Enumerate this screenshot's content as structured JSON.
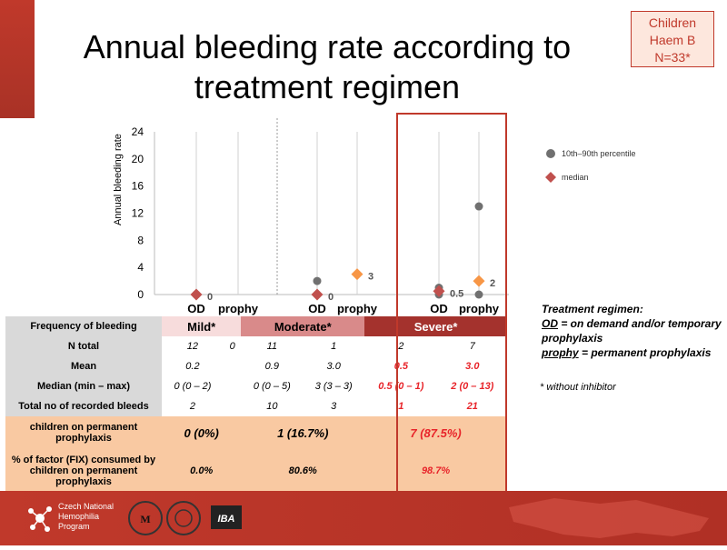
{
  "title": "Annual bleeding rate according to treatment regimen",
  "badge": {
    "line1": "Children",
    "line2": "Haem B",
    "line3": "N=33*"
  },
  "legend": {
    "percentile": "10th–90th percentile",
    "median": "median"
  },
  "colors": {
    "accent_red": "#c0392b",
    "grey_marker": "#707070",
    "median_red": "#c0504d",
    "median_orange": "#f79646"
  },
  "chart_data": {
    "type": "scatter",
    "title": "",
    "ylabel": "Annual bleeding rate",
    "ylim": [
      0,
      24
    ],
    "yticks": [
      "0",
      "4",
      "8",
      "12",
      "16",
      "20",
      "24"
    ],
    "categories": [
      "OD",
      "prophy",
      "OD",
      "prophy",
      "OD",
      "prophy"
    ],
    "groups": [
      "Mild*",
      "Moderate*",
      "Severe*"
    ],
    "series": [
      {
        "name": "10th–90th percentile",
        "points": [
          {
            "index": 0,
            "values": [
              0,
              0
            ]
          },
          {
            "index": 2,
            "values": [
              0,
              2
            ]
          },
          {
            "index": 4,
            "values": [
              0,
              1
            ]
          },
          {
            "index": 5,
            "values": [
              0,
              13
            ]
          }
        ]
      },
      {
        "name": "median",
        "points": [
          {
            "index": 0,
            "value": 0,
            "label": "0",
            "color": "#c0504d"
          },
          {
            "index": 2,
            "value": 0,
            "label": "0",
            "color": "#c0504d"
          },
          {
            "index": 3,
            "value": 3,
            "label": "3",
            "color": "#f79646"
          },
          {
            "index": 4,
            "value": 0.5,
            "label": "0.5",
            "color": "#c0504d"
          },
          {
            "index": 5,
            "value": 2,
            "label": "2",
            "color": "#f79646"
          }
        ]
      }
    ],
    "grid": false,
    "legend_position": "right"
  },
  "table": {
    "header_label": "Frequency of bleeding",
    "groups": [
      "Mild*",
      "Moderate*",
      "Severe*"
    ],
    "rows": [
      {
        "label": "N total",
        "cells": [
          "12",
          "0",
          "11",
          "1",
          "2",
          "7"
        ]
      },
      {
        "label": "Mean",
        "cells": [
          "0.2",
          "",
          "0.9",
          "3.0",
          "0.5",
          "3.0"
        ]
      },
      {
        "label": "Median (min – max)",
        "cells": [
          "0 (0 – 2)",
          "",
          "0 (0 – 5)",
          "3 (3 – 3)",
          "0.5 (0 – 1)",
          "2 (0 – 13)"
        ]
      },
      {
        "label": "Total no of recorded bleeds",
        "cells": [
          "2",
          "",
          "10",
          "3",
          "1",
          "21"
        ]
      }
    ],
    "perm_label": "children on permanent prophylaxis",
    "perm": [
      "0 (0%)",
      "1 (16.7%)",
      "7 (87.5%)"
    ],
    "factor_label": "% of factor (FIX) consumed by children on permanent prophylaxis",
    "factor": [
      "0.0%",
      "80.6%",
      "98.7%"
    ]
  },
  "treatment": {
    "heading": "Treatment regimen:",
    "od_term": "OD",
    "od_def": " = on demand and/or temporary prophylaxis",
    "prophy_term": "prophy",
    "prophy_def": " = permanent prophylaxis"
  },
  "note": "* without inhibitor",
  "footer": {
    "org_line1": "Czech National",
    "org_line2": "Hemophilia",
    "org_line3": "Program",
    "partner": "IBA"
  }
}
